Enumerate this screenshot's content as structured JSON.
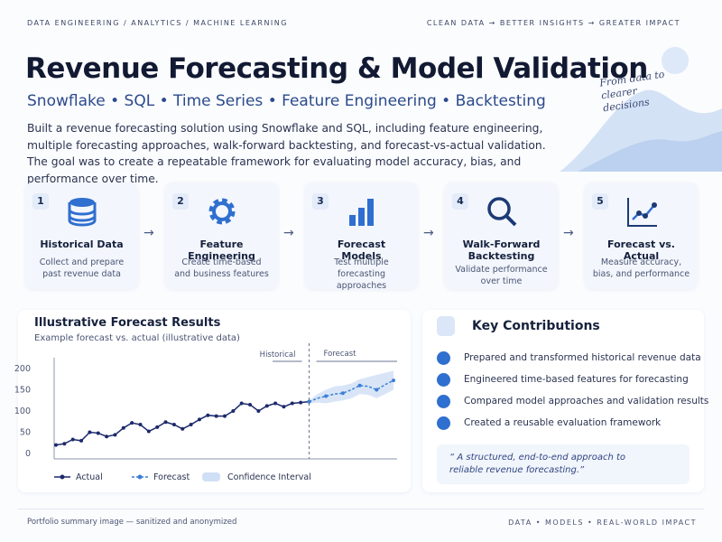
{
  "header": {
    "left": "DATA ENGINEERING  /  ANALYTICS  /  MACHINE LEARNING",
    "right": "CLEAN DATA  →  BETTER INSIGHTS  →  GREATER IMPACT"
  },
  "title": "Revenue Forecasting & Model Validation",
  "subtitle": "Snowflake  •  SQL  •  Time Series  •  Feature Engineering  •  Backtesting",
  "description": "Built a revenue forecasting solution using Snowflake and SQL, including feature engineering, multiple forecasting approaches, walk-forward backtesting, and forecast-vs-actual validation. The goal was to create a repeatable framework for evaluating model accuracy, bias, and performance over time.",
  "tagline": "From data to clearer decisions",
  "steps": [
    {
      "number": "1",
      "title": "Historical Data",
      "description": "Collect and prepare past revenue data"
    },
    {
      "number": "2",
      "title": "Feature Engineering",
      "description": "Create time-based and business features"
    },
    {
      "number": "3",
      "title": "Forecast Models",
      "description": "Test multiple forecasting approaches"
    },
    {
      "number": "4",
      "title": "Walk-Forward Backtesting",
      "description": "Validate performance over time"
    },
    {
      "number": "5",
      "title": "Forecast vs. Actual",
      "description": "Measure accuracy, bias, and performance"
    }
  ],
  "chart_data": {
    "type": "line",
    "title": "Illustrative Forecast Results",
    "subtitle": "Example forecast vs. actual (illustrative data)",
    "annotations": [
      "Historical",
      "Forecast"
    ],
    "ylim": [
      0,
      200
    ],
    "yticks": [
      0,
      50,
      100,
      150,
      200
    ],
    "series": [
      {
        "name": "Actual",
        "color": "#1c2a6b",
        "values": [
          20,
          23,
          33,
          30,
          50,
          48,
          40,
          44,
          60,
          72,
          68,
          52,
          62,
          74,
          68,
          58,
          68,
          80,
          90,
          88,
          88,
          100,
          118,
          115,
          100,
          112,
          118,
          110,
          118,
          120,
          122,
          null,
          null,
          null,
          null,
          null,
          null,
          null,
          null,
          null,
          null
        ]
      },
      {
        "name": "Forecast",
        "color": "#3b7fd6",
        "values": [
          null,
          null,
          null,
          null,
          null,
          null,
          null,
          null,
          null,
          null,
          null,
          null,
          null,
          null,
          null,
          null,
          null,
          null,
          null,
          null,
          null,
          null,
          null,
          null,
          null,
          null,
          null,
          null,
          null,
          null,
          122,
          130,
          135,
          140,
          142,
          150,
          160,
          158,
          150,
          162,
          172
        ]
      },
      {
        "name": "Confidence Interval",
        "color": "#cfdff5",
        "upper": [
          null,
          null,
          null,
          null,
          null,
          null,
          null,
          null,
          null,
          null,
          null,
          null,
          null,
          null,
          null,
          null,
          null,
          null,
          null,
          null,
          null,
          null,
          null,
          null,
          null,
          null,
          null,
          null,
          null,
          null,
          125,
          140,
          150,
          158,
          160,
          165,
          175,
          180,
          185,
          190,
          195
        ],
        "lower": [
          null,
          null,
          null,
          null,
          null,
          null,
          null,
          null,
          null,
          null,
          null,
          null,
          null,
          null,
          null,
          null,
          null,
          null,
          null,
          null,
          null,
          null,
          null,
          null,
          null,
          null,
          null,
          null,
          null,
          null,
          118,
          120,
          118,
          122,
          125,
          130,
          140,
          138,
          130,
          140,
          150
        ]
      }
    ]
  },
  "contributions": {
    "title": "Key Contributions",
    "items": [
      "Prepared and transformed historical revenue data",
      "Engineered time-based features for forecasting",
      "Compared model approaches and validation results",
      "Created a reusable evaluation framework"
    ],
    "quote": "“ A structured, end-to-end approach to reliable revenue forecasting.”"
  },
  "footer": {
    "left": "Portfolio summary image — sanitized and anonymized",
    "right": "DATA  •  MODELS  •  REAL-WORLD IMPACT"
  }
}
